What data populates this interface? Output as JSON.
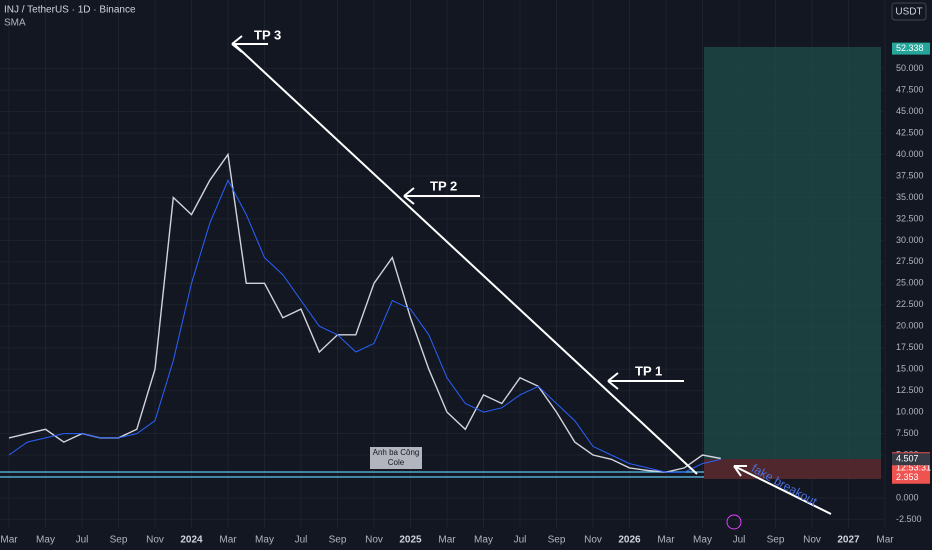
{
  "header": {
    "title": "INJ / TetherUS · 1D · Binance",
    "indicator": "SMA",
    "currency": "USDT"
  },
  "annotations": {
    "tp3": "TP 3",
    "tp2": "TP 2",
    "tp1": "TP 1",
    "fake": "fake breakout",
    "label": [
      "Anh ba Công",
      "Cole"
    ]
  },
  "chart_data": {
    "type": "line",
    "categories": [
      "Mar",
      null,
      "May",
      null,
      "Jul",
      null,
      "Sep",
      null,
      "Nov",
      null,
      "2024",
      null,
      "Mar",
      null,
      "May",
      null,
      "Jul",
      null,
      "Sep",
      null,
      "Nov",
      null,
      "2025",
      null,
      "Mar",
      null,
      "May",
      null,
      "Jul",
      null,
      "Sep",
      null,
      "Nov",
      null,
      "2026",
      null,
      "Mar",
      null,
      "May",
      null,
      "Jul",
      null,
      "Sep",
      null,
      "Nov",
      null,
      "2027",
      null,
      "Mar"
    ],
    "series": [
      {
        "name": "INJ",
        "color": "#d1d4dc",
        "values": [
          7,
          7.5,
          8,
          6.5,
          7.5,
          7,
          7,
          8,
          15,
          35,
          33,
          37,
          40,
          25,
          25,
          21,
          22,
          17,
          19,
          19,
          25,
          28,
          21,
          15,
          10,
          8,
          12,
          11,
          14,
          13,
          10,
          6.5,
          5,
          4.5,
          3.5,
          3.2,
          3,
          3.5,
          5,
          4.6,
          null,
          null,
          null,
          null,
          null,
          null,
          null,
          null,
          null
        ]
      },
      {
        "name": "SMA",
        "color": "#2962ff",
        "values": [
          5,
          6.5,
          7,
          7.5,
          7.5,
          7,
          7,
          7.5,
          9,
          16,
          25,
          32,
          37,
          33,
          28,
          26,
          23,
          20,
          19,
          17,
          18,
          23,
          22,
          19,
          14,
          11,
          10,
          10.5,
          12,
          13,
          11,
          9,
          6,
          5,
          4,
          3.5,
          3,
          3,
          4,
          4.5,
          null,
          null,
          null,
          null,
          null,
          null,
          null,
          null,
          null
        ]
      }
    ],
    "ylim": [
      -3.5,
      58
    ],
    "yticks": [
      {
        "value": -2.5,
        "label": "-2.500"
      },
      {
        "value": 0,
        "label": "0.000"
      },
      {
        "value": 2.5,
        "label": "2.500"
      },
      {
        "value": 5,
        "label": "5.000"
      },
      {
        "value": 7.5,
        "label": "7.500"
      },
      {
        "value": 10,
        "label": "10.000"
      },
      {
        "value": 12.5,
        "label": "12.500"
      },
      {
        "value": 15,
        "label": "15.000"
      },
      {
        "value": 17.5,
        "label": "17.500"
      },
      {
        "value": 20,
        "label": "20.000"
      },
      {
        "value": 22.5,
        "label": "22.500"
      },
      {
        "value": 25,
        "label": "25.000"
      },
      {
        "value": 27.5,
        "label": "27.500"
      },
      {
        "value": 30,
        "label": "30.000"
      },
      {
        "value": 32.5,
        "label": "32.500"
      },
      {
        "value": 35,
        "label": "35.000"
      },
      {
        "value": 37.5,
        "label": "37.500"
      },
      {
        "value": 40,
        "label": "40.000"
      },
      {
        "value": 42.5,
        "label": "42.500"
      },
      {
        "value": 45,
        "label": "45.000"
      },
      {
        "value": 47.5,
        "label": "47.500"
      },
      {
        "value": 50,
        "label": "50.000"
      }
    ],
    "grid": true,
    "price_badges": [
      {
        "value": 52.338,
        "color": "#26a69a"
      },
      {
        "value": 4.621,
        "color": "#ef5350",
        "extra": "12:53:31"
      },
      {
        "value": 4.507,
        "color": "#363a45"
      },
      {
        "value": 2.353,
        "color": "#ef5350"
      }
    ]
  }
}
